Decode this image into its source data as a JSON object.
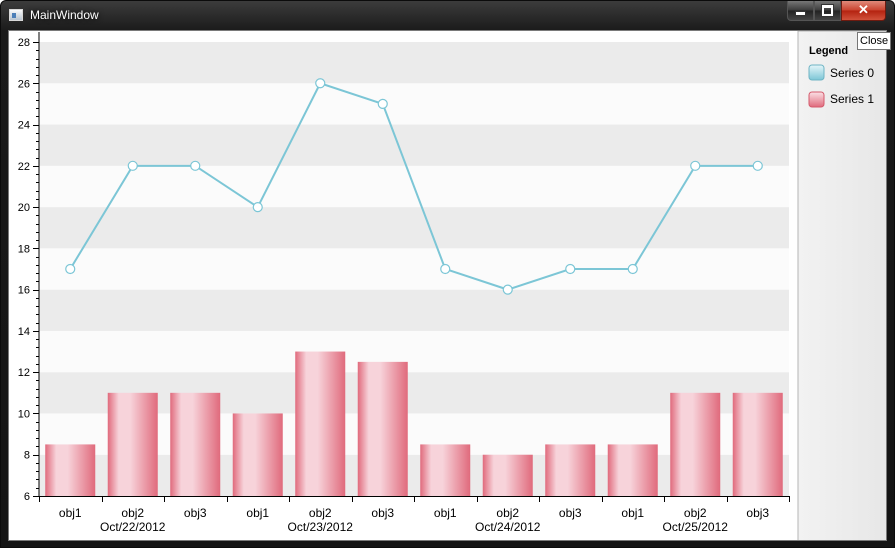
{
  "window": {
    "title": "MainWindow",
    "close_glyph": "✕",
    "close_tooltip": "Close"
  },
  "legend": {
    "title": "Legend",
    "entries": [
      "Series 0",
      "Series 1"
    ]
  },
  "colors": {
    "line": "#7cc6d6",
    "bar_dark": "#e06a7c",
    "bar_light": "#f7d3da",
    "band": "#ebebeb"
  },
  "chart_data": {
    "type": "line+bar",
    "ylim": [
      6,
      28
    ],
    "y_ticks": [
      "6",
      "8",
      "10",
      "12",
      "14",
      "16",
      "18",
      "20",
      "22",
      "24",
      "26",
      "28"
    ],
    "categories": [
      "obj1",
      "obj2",
      "obj3",
      "obj1",
      "obj2",
      "obj3",
      "obj1",
      "obj2",
      "obj3",
      "obj1",
      "obj2",
      "obj3"
    ],
    "groups": [
      "Oct/22/2012",
      "Oct/23/2012",
      "Oct/24/2012",
      "Oct/25/2012"
    ],
    "series": [
      {
        "name": "Series 0",
        "type": "line",
        "values": [
          17,
          22,
          22,
          20,
          26,
          25,
          17,
          16,
          17,
          17,
          22,
          22
        ]
      },
      {
        "name": "Series 1",
        "type": "bar",
        "values": [
          8.5,
          11,
          11,
          10,
          13,
          12.5,
          8.5,
          8,
          8.5,
          8.5,
          11,
          11
        ]
      }
    ],
    "grid": "alternating horizontal bands",
    "legend_position": "right"
  }
}
